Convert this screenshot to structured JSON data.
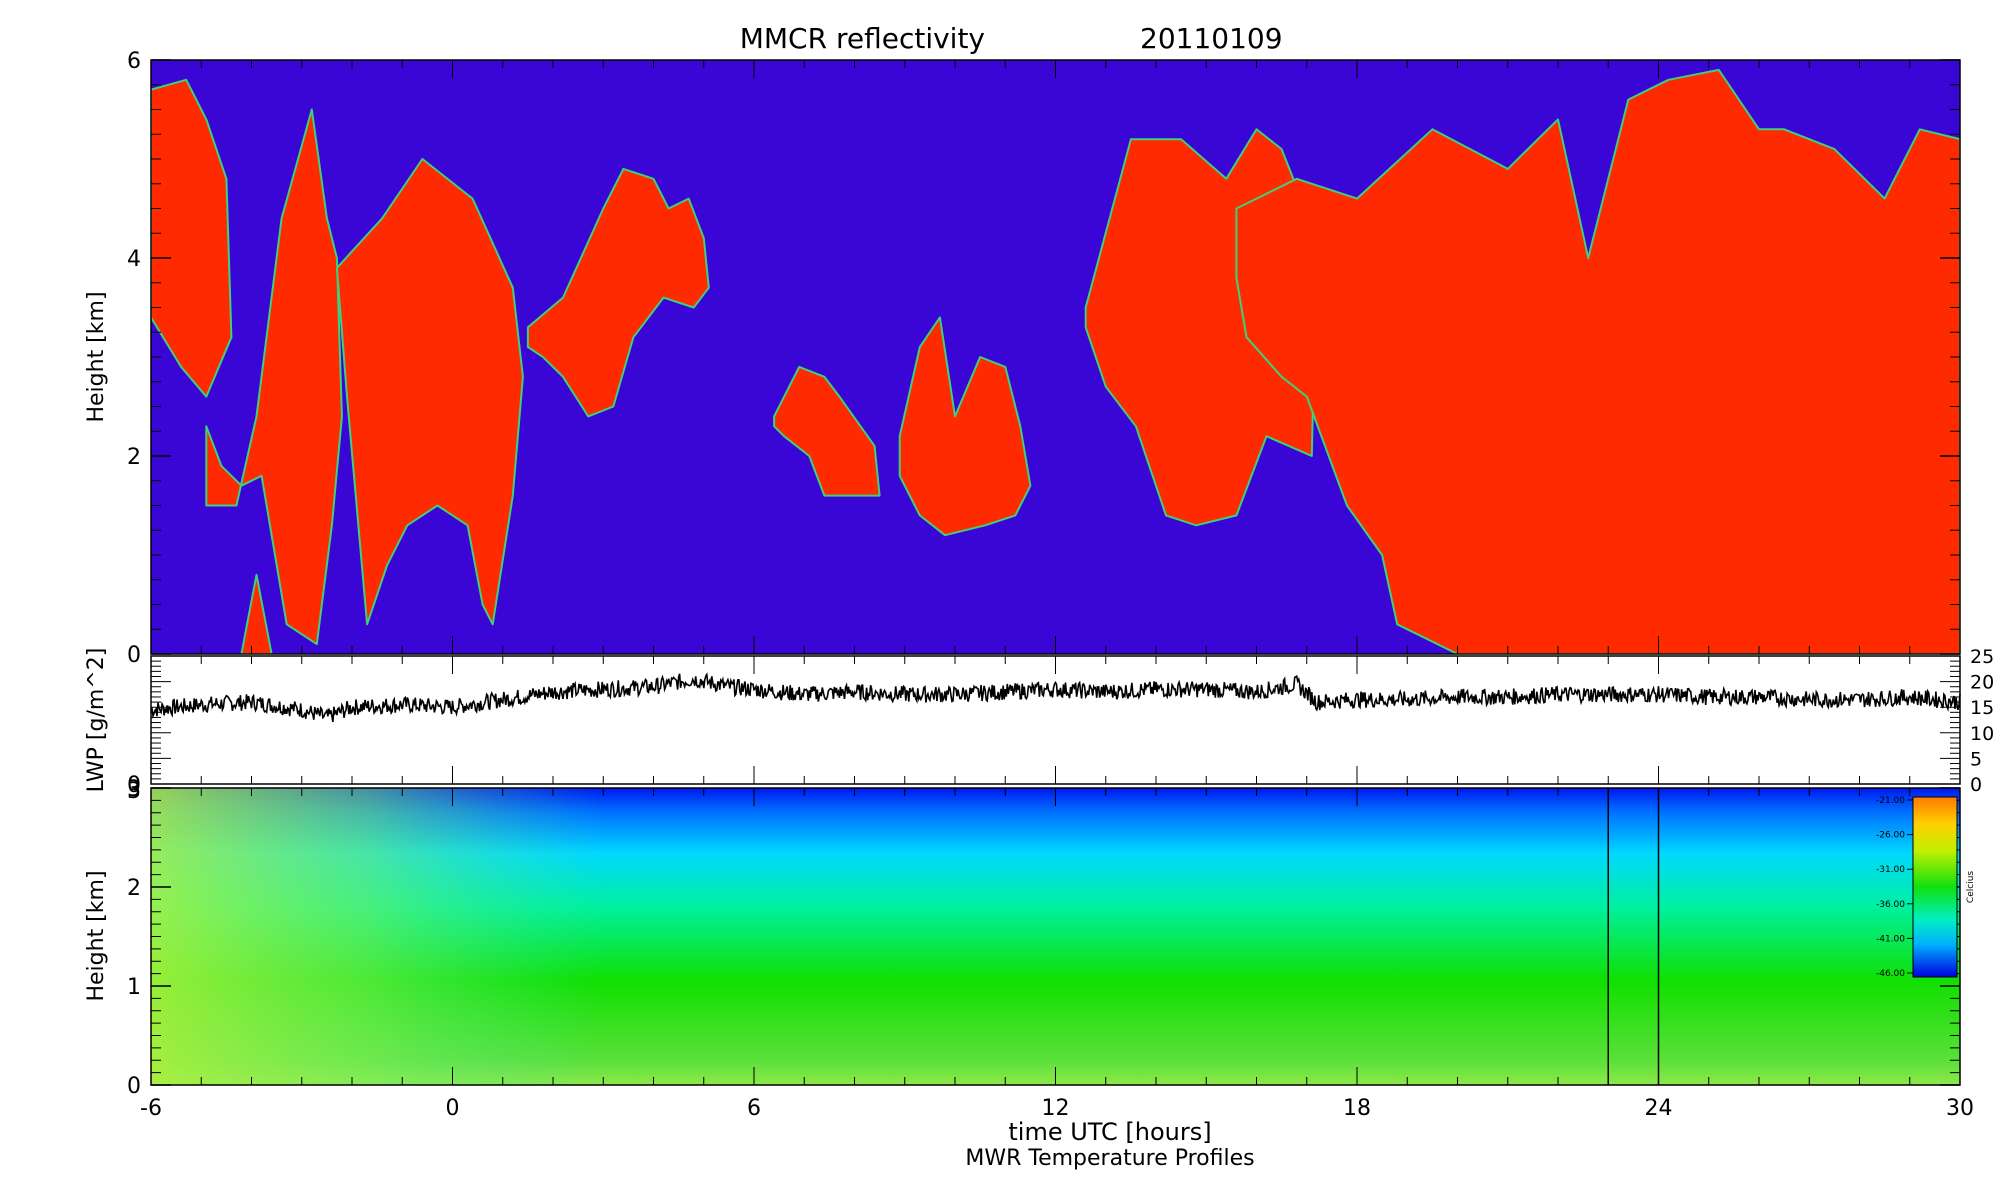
{
  "figure": {
    "title_label": "MMCR reflectivity",
    "title_date": "20110109",
    "xlabel": "time UTC [hours]",
    "caption": "MWR Temperature Profiles",
    "x_ticks": [
      "-6",
      "0",
      "6",
      "12",
      "18",
      "24",
      "30"
    ],
    "xlim": [
      -6,
      30
    ]
  },
  "chart_data": [
    {
      "type": "heatmap",
      "name": "reflectivity",
      "ylabel": "Height [km]",
      "ylim": [
        0,
        6
      ],
      "y_ticks": [
        "0",
        "2",
        "4",
        "6"
      ],
      "colors": {
        "background": "#3a06d6",
        "cloud": "#ff2a00",
        "edge": "#3fd07a"
      },
      "cloud_regions": [
        {
          "x": [
            -6,
            -5.3,
            -4.9,
            -4.5,
            -4.4,
            -4.9,
            -5.4,
            -6
          ],
          "y": [
            5.7,
            5.8,
            5.4,
            4.8,
            3.2,
            2.6,
            2.9,
            3.4
          ]
        },
        {
          "x": [
            -4.9,
            -4.3,
            -3.9,
            -3.4,
            -2.8,
            -2.5,
            -2.3,
            -2.2,
            -2.4,
            -2.7,
            -3.3,
            -3.8,
            -4.2,
            -4.6,
            -4.9
          ],
          "y": [
            1.5,
            1.5,
            2.4,
            4.4,
            5.5,
            4.4,
            4.0,
            2.4,
            1.3,
            0.1,
            0.3,
            1.8,
            1.7,
            1.9,
            2.3
          ]
        },
        {
          "x": [
            -4.2,
            -3.9,
            -3.6,
            -3.9
          ],
          "y": [
            0.0,
            0.8,
            0.0,
            0.0
          ]
        },
        {
          "x": [
            -2.3,
            -1.4,
            -0.6,
            0.4,
            1.2,
            1.4,
            1.2,
            0.8,
            0.6,
            0.3,
            -0.3,
            -0.9,
            -1.3,
            -1.7,
            -2.1
          ],
          "y": [
            3.9,
            4.4,
            5.0,
            4.6,
            3.7,
            2.8,
            1.6,
            0.3,
            0.5,
            1.3,
            1.5,
            1.3,
            0.9,
            0.3,
            2.6
          ]
        },
        {
          "x": [
            1.5,
            2.2,
            3.0,
            3.4,
            4.0,
            4.3,
            4.7,
            5.0,
            5.1,
            4.8,
            4.2,
            3.6,
            3.2,
            2.7,
            2.2,
            1.8,
            1.5
          ],
          "y": [
            3.3,
            3.6,
            4.5,
            4.9,
            4.8,
            4.5,
            4.6,
            4.2,
            3.7,
            3.5,
            3.6,
            3.2,
            2.5,
            2.4,
            2.8,
            3.0,
            3.1
          ]
        },
        {
          "x": [
            6.4,
            6.9,
            7.4,
            7.7,
            8.4,
            8.5,
            7.4,
            7.1,
            6.6,
            6.4
          ],
          "y": [
            2.4,
            2.9,
            2.8,
            2.6,
            2.1,
            1.6,
            1.6,
            2.0,
            2.2,
            2.3
          ]
        },
        {
          "x": [
            8.9,
            9.3,
            9.7,
            10.0,
            10.5,
            11.0,
            11.3,
            11.5,
            11.2,
            10.6,
            9.8,
            9.3,
            8.9
          ],
          "y": [
            2.2,
            3.1,
            3.4,
            2.4,
            3.0,
            2.9,
            2.3,
            1.7,
            1.4,
            1.3,
            1.2,
            1.4,
            1.8
          ]
        },
        {
          "x": [
            12.6,
            13.5,
            14.5,
            15.4,
            16.0,
            16.5,
            17.2,
            17.1,
            16.2,
            15.6,
            14.8,
            14.2,
            13.6,
            13.0,
            12.6
          ],
          "y": [
            3.5,
            5.2,
            5.2,
            4.8,
            5.3,
            5.1,
            4.2,
            2.0,
            2.2,
            1.4,
            1.3,
            1.4,
            2.3,
            2.7,
            3.3
          ]
        },
        {
          "x": [
            15.6,
            16.8,
            18.0,
            19.5,
            21.0,
            22.0,
            22.6,
            23.4,
            24.2,
            25.2,
            26.0,
            26.5,
            27.5,
            28.5,
            29.2,
            30.0,
            30.0,
            28.0,
            24.0,
            20.0,
            19.2,
            18.8,
            18.5,
            17.8,
            17.0,
            16.5,
            15.8,
            15.6
          ],
          "y": [
            4.5,
            4.8,
            4.6,
            5.3,
            4.9,
            5.4,
            4.0,
            5.6,
            5.8,
            5.9,
            5.3,
            5.3,
            5.1,
            4.6,
            5.3,
            5.2,
            0.0,
            0.0,
            0.0,
            0.0,
            0.2,
            0.3,
            1.0,
            1.5,
            2.6,
            2.8,
            3.2,
            3.8
          ]
        }
      ]
    },
    {
      "type": "line",
      "name": "lwp",
      "ylabel": "LWP [g/m^2]",
      "ylim": [
        0,
        25
      ],
      "y_ticks": [
        "0",
        "5",
        "10",
        "15",
        "20",
        "25"
      ],
      "x": [
        -6,
        -5,
        -4,
        -3,
        -2.5,
        -2,
        -1,
        0,
        1,
        2,
        3,
        4,
        4.8,
        5.5,
        6,
        7,
        8,
        9,
        10,
        11,
        12,
        13,
        14,
        15,
        16,
        16.8,
        17.2,
        18,
        19,
        20,
        21,
        22,
        23,
        24,
        25,
        26,
        27,
        28,
        29,
        30
      ],
      "values": [
        14.5,
        15.5,
        16,
        14.5,
        13,
        15,
        15.5,
        15,
        16.5,
        18,
        18.5,
        19,
        20.5,
        19,
        18.5,
        17.5,
        18,
        17.5,
        17.5,
        18,
        18.5,
        18,
        18.5,
        18.5,
        18,
        19.5,
        16,
        16.5,
        16.5,
        17,
        17,
        17.5,
        17.5,
        17.5,
        17,
        17,
        16.5,
        16.5,
        17,
        16
      ]
    },
    {
      "type": "heatmap",
      "name": "temperature",
      "ylabel": "Height [km]",
      "ylim": [
        0,
        3
      ],
      "y_ticks": [
        "0",
        "1",
        "2",
        "3"
      ],
      "colorbar": {
        "label": "Celcius",
        "ticks": [
          "-21.00",
          "-26.00",
          "-31.00",
          "-36.00",
          "-41.00",
          "-46.00"
        ],
        "range": [
          -46,
          -21
        ]
      },
      "markers_x": [
        23,
        24
      ],
      "warm_core": {
        "x": -4.8,
        "y": 0.4,
        "value": -21
      }
    }
  ]
}
